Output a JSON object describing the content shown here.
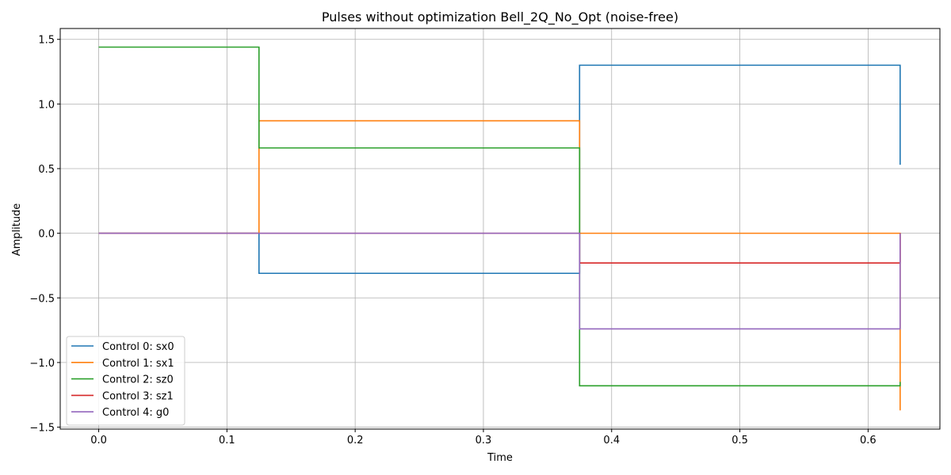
{
  "chart_data": {
    "type": "line",
    "step": "post",
    "title": "Pulses without optimization Bell_2Q_No_Opt (noise-free)",
    "xlabel": "Time",
    "ylabel": "Amplitude",
    "xlim": [
      -0.03,
      0.656
    ],
    "ylim": [
      -1.515,
      1.584
    ],
    "xticks": [
      0.0,
      0.1,
      0.2,
      0.3,
      0.4,
      0.5,
      0.6
    ],
    "xtick_labels": [
      "0.0",
      "0.1",
      "0.2",
      "0.3",
      "0.4",
      "0.5",
      "0.6"
    ],
    "yticks": [
      -1.5,
      -1.0,
      -0.5,
      0.0,
      0.5,
      1.0,
      1.5
    ],
    "ytick_labels": [
      "−1.5",
      "−1.0",
      "−0.5",
      "0.0",
      "0.5",
      "1.0",
      "1.5"
    ],
    "grid": true,
    "legend_position": "lower-left",
    "x": [
      0.0,
      0.125,
      0.375,
      0.625
    ],
    "series": [
      {
        "name": "Control 0: sx0",
        "color": "#1f77b4",
        "values": [
          0.0,
          -0.31,
          1.3,
          0.53
        ]
      },
      {
        "name": "Control 1: sx1",
        "color": "#ff7f0e",
        "values": [
          0.0,
          0.87,
          0.0,
          -1.37
        ]
      },
      {
        "name": "Control 2: sz0",
        "color": "#2ca02c",
        "values": [
          1.44,
          0.66,
          -1.18,
          -1.15
        ]
      },
      {
        "name": "Control 3: sz1",
        "color": "#d62728",
        "values": [
          0.0,
          0.0,
          -0.23,
          0.0
        ]
      },
      {
        "name": "Control 4: g0",
        "color": "#9467bd",
        "values": [
          0.0,
          0.0,
          -0.74,
          0.0
        ]
      }
    ]
  }
}
